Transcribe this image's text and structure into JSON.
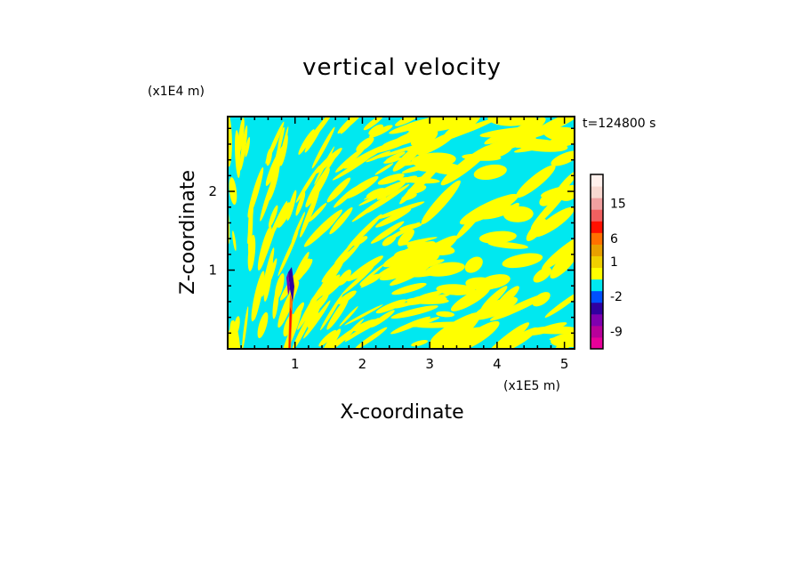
{
  "chart_data": {
    "type": "heatmap",
    "title": "vertical velocity",
    "xlabel": "X-coordinate",
    "ylabel": "Z-coordinate",
    "x_unit": "(x1E5 m)",
    "y_unit": "(x1E4 m)",
    "time_label": "t=124800 s",
    "xlim": [
      0,
      5.15
    ],
    "ylim": [
      0,
      2.95
    ],
    "x_ticks": [
      "1",
      "2",
      "3",
      "4",
      "5"
    ],
    "x_tick_values": [
      1,
      2,
      3,
      4,
      5
    ],
    "y_ticks": [
      "1",
      "2"
    ],
    "y_tick_values": [
      1,
      2
    ],
    "colorbar": {
      "colors": [
        "#e8009a",
        "#b8009a",
        "#8000b0",
        "#3000a0",
        "#0050ff",
        "#00e8f0",
        "#ffff00",
        "#f0d000",
        "#e8a000",
        "#ff7000",
        "#ff1000",
        "#f06060",
        "#f0a0a0",
        "#f8d8d0",
        "#fff0ec"
      ],
      "labels": [
        "-9",
        "-2",
        "1",
        "6",
        "15"
      ],
      "label_bands": [
        1,
        4,
        7,
        9,
        12
      ]
    },
    "field_note": "alternating cyan (weak downward) and yellow (weak upward) bands; strong updraft/downdraft pair near x=0.9"
  }
}
